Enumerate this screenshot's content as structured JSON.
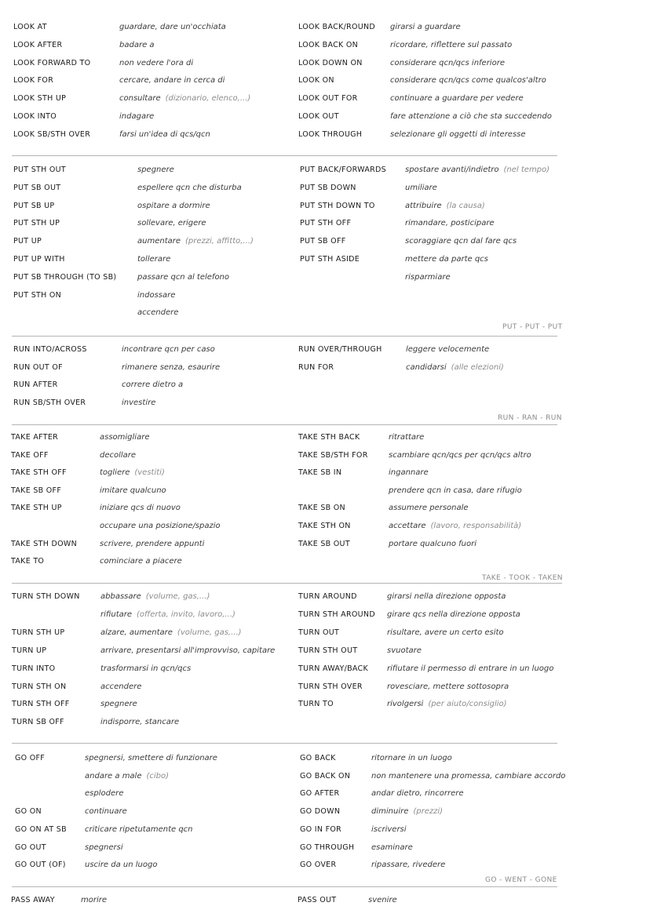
{
  "sections": [
    {
      "key": "look",
      "forms": "",
      "left": [
        {
          "verb": "LOOK AT",
          "meaning": "guardare, dare un'occhiata",
          "note": ""
        },
        {
          "verb": "LOOK AFTER",
          "meaning": "badare a",
          "note": ""
        },
        {
          "verb": "LOOK FORWARD TO",
          "meaning": "non vedere l'ora di",
          "note": ""
        },
        {
          "verb": "LOOK FOR",
          "meaning": "cercare, andare in cerca di",
          "note": ""
        },
        {
          "verb": "LOOK STH UP",
          "meaning": "consultare",
          "note": "(dizionario, elenco,...)"
        },
        {
          "verb": "LOOK INTO",
          "meaning": "indagare",
          "note": ""
        },
        {
          "verb": "LOOK SB/STH OVER",
          "meaning": "farsi un'idea di qcs/qcn",
          "note": ""
        }
      ],
      "right": [
        {
          "verb": "LOOK BACK/ROUND",
          "meaning": "girarsi a guardare",
          "note": ""
        },
        {
          "verb": "LOOK BACK ON",
          "meaning": "ricordare, riflettere sul passato",
          "note": ""
        },
        {
          "verb": "LOOK DOWN ON",
          "meaning": "considerare qcn/qcs inferiore",
          "note": ""
        },
        {
          "verb": "LOOK ON",
          "meaning": "considerare qcn/qcs come qualcos'altro",
          "note": ""
        },
        {
          "verb": "LOOK OUT FOR",
          "meaning": "continuare a guardare per vedere",
          "note": ""
        },
        {
          "verb": "LOOK OUT",
          "meaning": "fare attenzione a ciò che sta succedendo",
          "note": ""
        },
        {
          "verb": "LOOK THROUGH",
          "meaning": "selezionare gli oggetti di interesse",
          "note": ""
        }
      ]
    },
    {
      "key": "put",
      "forms": "PUT - PUT - PUT",
      "left": [
        {
          "verb": "PUT STH OUT",
          "meaning": "spegnere",
          "note": ""
        },
        {
          "verb": "PUT SB OUT",
          "meaning": "espellere qcn che disturba",
          "note": ""
        },
        {
          "verb": "PUT SB UP",
          "meaning": "ospitare a dormire",
          "note": ""
        },
        {
          "verb": "PUT STH UP",
          "meaning": "sollevare, erigere",
          "note": ""
        },
        {
          "verb": "PUT UP",
          "meaning": "aumentare",
          "note": "(prezzi, affitto,...)"
        },
        {
          "verb": "PUT UP WITH",
          "meaning": "tollerare",
          "note": ""
        },
        {
          "verb": "PUT SB THROUGH (TO SB)",
          "meaning": "passare qcn al telefono",
          "note": ""
        },
        {
          "verb": "PUT STH ON",
          "meaning": "indossare",
          "note": ""
        },
        {
          "verb": "",
          "meaning": "accendere",
          "note": ""
        }
      ],
      "right": [
        {
          "verb": "PUT BACK/FORWARDS",
          "meaning": "spostare avanti/indietro",
          "note": "(nel tempo)"
        },
        {
          "verb": "PUT SB DOWN",
          "meaning": "umiliare",
          "note": ""
        },
        {
          "verb": "PUT STH DOWN TO",
          "meaning": "attribuire",
          "note": "(la causa)"
        },
        {
          "verb": "PUT STH OFF",
          "meaning": "rimandare, posticipare",
          "note": ""
        },
        {
          "verb": "PUT SB OFF",
          "meaning": "scoraggiare qcn dal fare qcs",
          "note": ""
        },
        {
          "verb": "PUT STH ASIDE",
          "meaning": "mettere da parte qcs",
          "note": ""
        },
        {
          "verb": "",
          "meaning": "risparmiare",
          "note": ""
        }
      ]
    },
    {
      "key": "run",
      "forms": "RUN - RAN - RUN",
      "left": [
        {
          "verb": "RUN INTO/ACROSS",
          "meaning": "incontrare qcn per caso",
          "note": ""
        },
        {
          "verb": "RUN OUT OF",
          "meaning": "rimanere senza, esaurire",
          "note": ""
        },
        {
          "verb": "RUN AFTER",
          "meaning": "correre dietro a",
          "note": ""
        },
        {
          "verb": "RUN SB/STH OVER",
          "meaning": "investire",
          "note": ""
        }
      ],
      "right": [
        {
          "verb": "RUN OVER/THROUGH",
          "meaning": "leggere velocemente",
          "note": ""
        },
        {
          "verb": "RUN FOR",
          "meaning": "candidarsi",
          "note": "(alle elezioni)"
        }
      ]
    },
    {
      "key": "take",
      "forms": "TAKE - TOOK - TAKEN",
      "left": [
        {
          "verb": "TAKE AFTER",
          "meaning": "assomigliare",
          "note": ""
        },
        {
          "verb": "TAKE OFF",
          "meaning": "decollare",
          "note": ""
        },
        {
          "verb": "TAKE STH OFF",
          "meaning": "togliere",
          "note": "(vestiti)"
        },
        {
          "verb": "TAKE SB OFF",
          "meaning": "imitare qualcuno",
          "note": ""
        },
        {
          "verb": "TAKE STH UP",
          "meaning": "iniziare qcs di nuovo",
          "note": ""
        },
        {
          "verb": "",
          "meaning": "occupare una posizione/spazio",
          "note": ""
        },
        {
          "verb": "TAKE STH DOWN",
          "meaning": "scrivere, prendere appunti",
          "note": ""
        },
        {
          "verb": "TAKE TO",
          "meaning": "cominciare a piacere",
          "note": ""
        }
      ],
      "right": [
        {
          "verb": "TAKE STH BACK",
          "meaning": "ritrattare",
          "note": ""
        },
        {
          "verb": "TAKE SB/STH FOR",
          "meaning": "scambiare qcn/qcs per qcn/qcs altro",
          "note": ""
        },
        {
          "verb": "TAKE SB IN",
          "meaning": "ingannare",
          "note": ""
        },
        {
          "verb": "",
          "meaning": "prendere qcn in casa, dare rifugio",
          "note": ""
        },
        {
          "verb": "TAKE SB ON",
          "meaning": "assumere personale",
          "note": ""
        },
        {
          "verb": "TAKE STH ON",
          "meaning": "accettare",
          "note": "(lavoro, responsabilità)"
        },
        {
          "verb": "TAKE SB OUT",
          "meaning": "portare qualcuno fuori",
          "note": ""
        }
      ]
    },
    {
      "key": "turn",
      "forms": "",
      "left": [
        {
          "verb": "TURN STH DOWN",
          "meaning": "abbassare",
          "note": "(volume, gas,...)"
        },
        {
          "verb": "",
          "meaning": "rifiutare",
          "note": "(offerta, invito, lavoro,...)"
        },
        {
          "verb": "TURN STH UP",
          "meaning": "alzare, aumentare",
          "note": "(volume, gas,...)"
        },
        {
          "verb": "TURN UP",
          "meaning": "arrivare, presentarsi all'improvviso, capitare",
          "note": ""
        },
        {
          "verb": "TURN INTO",
          "meaning": "trasformarsi in qcn/qcs",
          "note": ""
        },
        {
          "verb": "TURN STH ON",
          "meaning": "accendere",
          "note": ""
        },
        {
          "verb": "TURN STH OFF",
          "meaning": "spegnere",
          "note": ""
        },
        {
          "verb": "TURN SB OFF",
          "meaning": "indisporre, stancare",
          "note": ""
        }
      ],
      "right": [
        {
          "verb": "TURN AROUND",
          "meaning": "girarsi nella direzione opposta",
          "note": ""
        },
        {
          "verb": "TURN STH AROUND",
          "meaning": "girare qcs nella direzione opposta",
          "note": ""
        },
        {
          "verb": "TURN OUT",
          "meaning": "risultare, avere un certo esito",
          "note": ""
        },
        {
          "verb": "TURN STH OUT",
          "meaning": "svuotare",
          "note": ""
        },
        {
          "verb": "TURN AWAY/BACK",
          "meaning": "rifiutare il permesso di entrare in un luogo",
          "note": ""
        },
        {
          "verb": "TURN STH OVER",
          "meaning": "rovesciare, mettere sottosopra",
          "note": ""
        },
        {
          "verb": "TURN TO",
          "meaning": "rivolgersi",
          "note": "(per aiuto/consiglio)"
        }
      ]
    },
    {
      "key": "go",
      "forms": "GO - WENT - GONE",
      "left": [
        {
          "verb": "GO OFF",
          "meaning": "spegnersi, smettere di funzionare",
          "note": ""
        },
        {
          "verb": "",
          "meaning": "andare a male",
          "note": "(cibo)"
        },
        {
          "verb": "",
          "meaning": "esplodere",
          "note": ""
        },
        {
          "verb": "GO ON",
          "meaning": "continuare",
          "note": ""
        },
        {
          "verb": "GO ON AT SB",
          "meaning": "criticare ripetutamente qcn",
          "note": ""
        },
        {
          "verb": "GO OUT",
          "meaning": "spegnersi",
          "note": ""
        },
        {
          "verb": "GO OUT (OF)",
          "meaning": "uscire da un luogo",
          "note": ""
        }
      ],
      "right": [
        {
          "verb": "GO BACK",
          "meaning": "ritornare in un luogo",
          "note": ""
        },
        {
          "verb": "GO BACK ON",
          "meaning": "non mantenere una promessa, cambiare accordo",
          "note": ""
        },
        {
          "verb": "GO AFTER",
          "meaning": "andar dietro, rincorrere",
          "note": ""
        },
        {
          "verb": "GO DOWN",
          "meaning": "diminuire",
          "note": "(prezzi)"
        },
        {
          "verb": "GO IN FOR",
          "meaning": "iscriversi",
          "note": ""
        },
        {
          "verb": "GO THROUGH",
          "meaning": "esaminare",
          "note": ""
        },
        {
          "verb": "GO OVER",
          "meaning": "ripassare, rivedere",
          "note": ""
        }
      ]
    },
    {
      "key": "pass",
      "forms": "",
      "left": [
        {
          "verb": "PASS AWAY",
          "meaning": "morire",
          "note": ""
        }
      ],
      "right": [
        {
          "verb": "PASS OUT",
          "meaning": "svenire",
          "note": ""
        }
      ]
    }
  ]
}
